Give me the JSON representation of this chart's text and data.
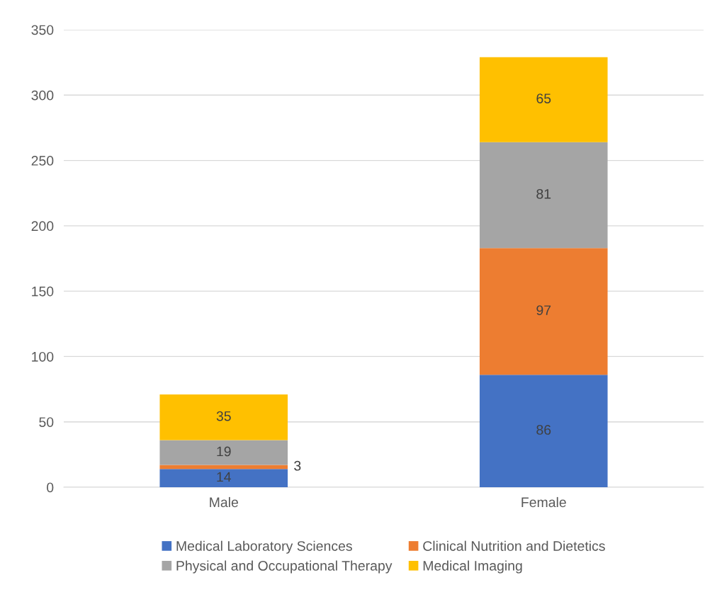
{
  "chart_data": {
    "type": "bar",
    "stacked": true,
    "categories": [
      "Male",
      "Female"
    ],
    "series": [
      {
        "name": "Medical Laboratory Sciences",
        "color": "#4472c4",
        "values": [
          14,
          86
        ]
      },
      {
        "name": "Clinical Nutrition and Dietetics",
        "color": "#ed7d31",
        "values": [
          3,
          97
        ]
      },
      {
        "name": "Physical and Occupational Therapy",
        "color": "#a5a5a5",
        "values": [
          19,
          81
        ]
      },
      {
        "name": "Medical Imaging",
        "color": "#ffc000",
        "values": [
          35,
          65
        ]
      }
    ],
    "ylim": [
      0,
      350
    ],
    "yticks": [
      0,
      50,
      100,
      150,
      200,
      250,
      300,
      350
    ],
    "grid": "y",
    "legend": "bottom",
    "data_labels": true
  }
}
